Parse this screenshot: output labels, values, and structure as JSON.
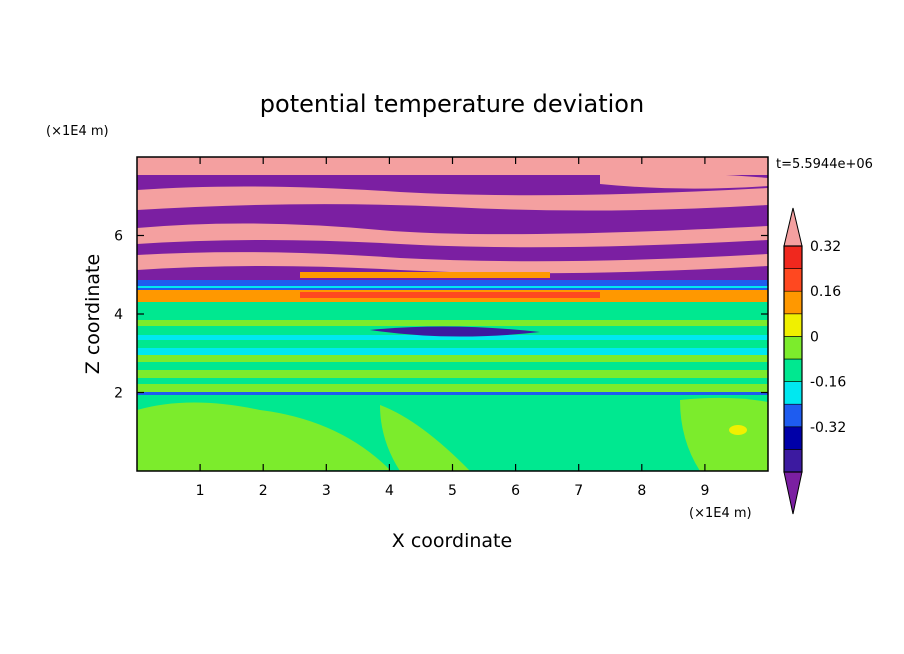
{
  "chart_data": {
    "type": "heatmap",
    "title": "potential temperature deviation",
    "xlabel": "X coordinate",
    "ylabel": "Z coordinate",
    "x_unit": "(×1E4 m)",
    "y_unit": "(×1E4 m)",
    "time_label": "t=5.5944e+06",
    "xlim": [
      0,
      10
    ],
    "ylim": [
      0,
      8
    ],
    "x_ticks": [
      "1",
      "2",
      "3",
      "4",
      "5",
      "6",
      "7",
      "8",
      "9"
    ],
    "y_ticks": [
      "2",
      "4",
      "6"
    ],
    "colorbar": {
      "levels": [
        -0.48,
        -0.4,
        -0.32,
        -0.24,
        -0.16,
        -0.08,
        0,
        0.08,
        0.16,
        0.24,
        0.32,
        0.4
      ],
      "labels": [
        "-0.32",
        "-0.16",
        "0",
        "0.16",
        "0.32"
      ],
      "colors": [
        "#7b1fa2",
        "#3c1aa0",
        "#0000a8",
        "#1e5cf0",
        "#00e8f0",
        "#00e890",
        "#7cec2c",
        "#f0f000",
        "#ff9800",
        "#ff4820",
        "#f0281e",
        "#f4a0a0"
      ]
    }
  }
}
